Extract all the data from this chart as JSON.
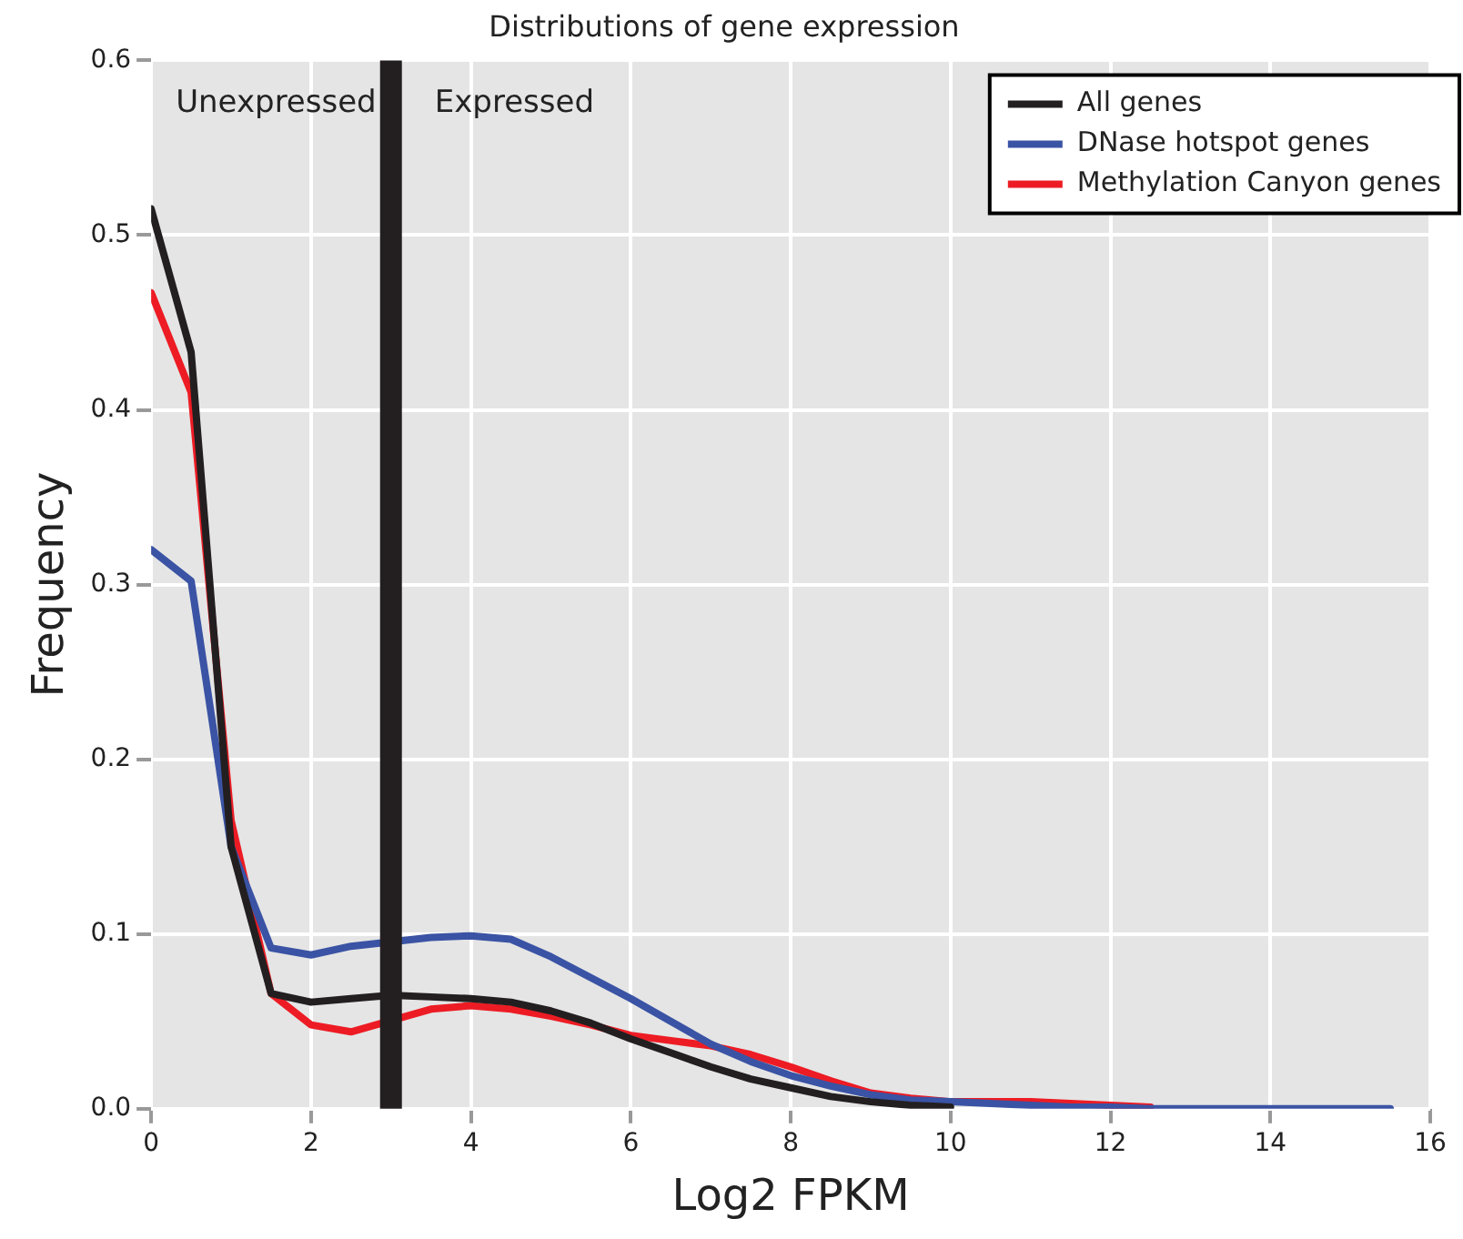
{
  "chart_data": {
    "type": "line",
    "title": "Distributions of gene expression",
    "xlabel": "Log2 FPKM",
    "ylabel": "Frequency",
    "x": [
      0,
      0.5,
      1,
      1.5,
      2,
      2.5,
      3,
      3.5,
      4,
      4.5,
      5,
      5.5,
      6,
      6.5,
      7,
      7.5,
      8,
      8.5,
      9,
      9.5,
      10,
      10.5,
      11,
      11.5,
      12,
      12.5,
      13,
      13.5,
      14,
      14.5,
      15,
      15.5
    ],
    "series": [
      {
        "name": "All genes",
        "color": "#231f20",
        "values": [
          0.515,
          0.433,
          0.15,
          0.066,
          0.061,
          0.063,
          0.065,
          0.064,
          0.063,
          0.061,
          0.056,
          0.049,
          0.04,
          0.032,
          0.024,
          0.017,
          0.012,
          0.007,
          0.004,
          0.002,
          0.001,
          null,
          null,
          null,
          null,
          null,
          null,
          null,
          null,
          null,
          null,
          null
        ]
      },
      {
        "name": "DNase hotspot genes",
        "color": "#3a53a4",
        "values": [
          0.32,
          0.302,
          0.15,
          0.092,
          0.088,
          0.093,
          null,
          0.098,
          0.099,
          0.097,
          0.087,
          0.075,
          0.063,
          0.05,
          0.037,
          0.027,
          0.019,
          0.013,
          0.008,
          0.005,
          0.004,
          0.003,
          0.002,
          0.001,
          0.001,
          0,
          0,
          0,
          0,
          0,
          0,
          0
        ]
      },
      {
        "name": "Methylation Canyon genes",
        "color": "#ed1c24",
        "values": [
          0.467,
          0.41,
          0.165,
          0.066,
          0.048,
          0.044,
          null,
          0.057,
          0.059,
          0.057,
          0.053,
          0.048,
          0.042,
          0.039,
          0.036,
          0.031,
          0.024,
          0.016,
          0.009,
          0.006,
          0.004,
          0.004,
          0.004,
          0.003,
          0.002,
          0.001,
          null,
          null,
          null,
          null,
          null,
          null
        ]
      }
    ],
    "xlim": [
      0,
      16
    ],
    "xticks": [
      0,
      2,
      4,
      6,
      8,
      10,
      12,
      14,
      16
    ],
    "ylim": [
      0,
      0.6
    ],
    "yticks": [
      {
        "value": 0,
        "label": "0.0"
      },
      {
        "value": 0.1,
        "label": "0.1"
      },
      {
        "value": 0.2,
        "label": "0.2"
      },
      {
        "value": 0.3,
        "label": "0.3"
      },
      {
        "value": 0.4,
        "label": "0.4"
      },
      {
        "value": 0.5,
        "label": "0.5"
      },
      {
        "value": 0.6,
        "label": "0.6"
      }
    ],
    "ref_lines": [
      {
        "axis": "x",
        "value": 3,
        "color": "#231f20"
      }
    ],
    "annotations": [
      "Unexpressed",
      "Expressed"
    ],
    "grid": true,
    "legend": "top right",
    "marker": "none",
    "line_style": "solid"
  }
}
